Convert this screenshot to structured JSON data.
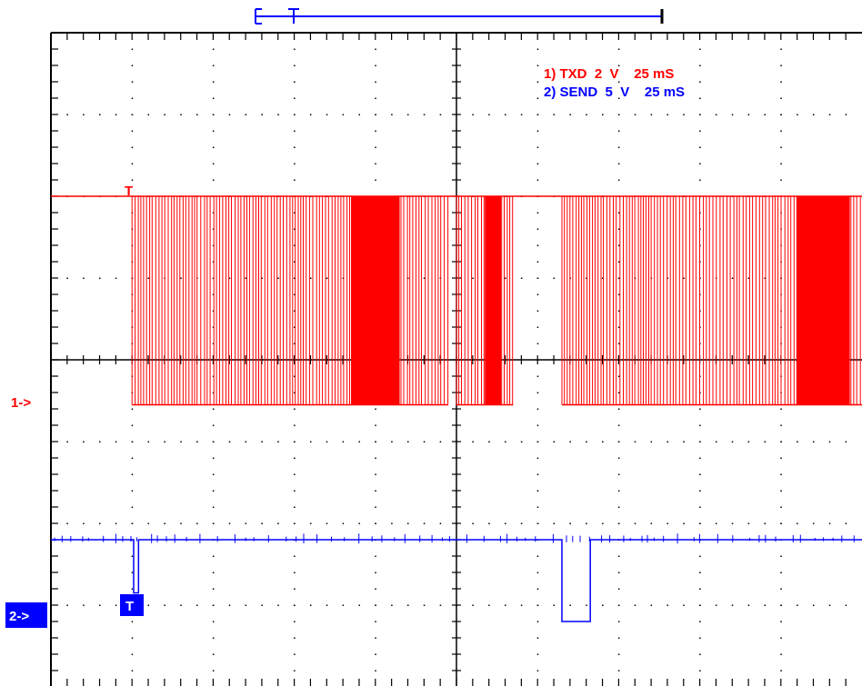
{
  "chart_data": {
    "type": "line",
    "title": "",
    "xlabel": "",
    "ylabel": "",
    "grid": true,
    "divisions": {
      "x": 10,
      "y": 8
    },
    "legend_placement": "top-right",
    "legend": [
      {
        "label": "1) TXD  2  V    25 mS",
        "color": "#ff0000"
      },
      {
        "label": "2) SEND  5  V    25 mS",
        "color": "#0000ff"
      }
    ],
    "series": [
      {
        "name": "TXD",
        "color": "#ff0000",
        "volts_per_div": 2,
        "time_per_div_ms": 25,
        "high_div": 2.0,
        "low_div": -0.55,
        "bursts_div": [
          [
            1.0,
            4.9
          ],
          [
            5.0,
            5.7
          ],
          [
            6.3,
            10.0
          ]
        ],
        "dense_div": [
          [
            3.7,
            4.3
          ],
          [
            5.35,
            5.55
          ],
          [
            9.2,
            9.85
          ]
        ]
      },
      {
        "name": "SEND",
        "color": "#0000ff",
        "volts_per_div": 5,
        "time_per_div_ms": 25,
        "idle_div": -2.2,
        "pulses": [
          {
            "start_div": 1.02,
            "end_div": 1.08,
            "level_div": -2.85
          },
          {
            "start_div": 6.3,
            "end_div": 6.65,
            "level_div": -3.2
          }
        ]
      }
    ],
    "markers": {
      "channel1": "1->",
      "channel2": "2->",
      "trigger": "T"
    },
    "timeline_bar": {
      "start_frac": 0.0,
      "end_frac": 1.0,
      "trigger_frac": 0.1
    }
  }
}
